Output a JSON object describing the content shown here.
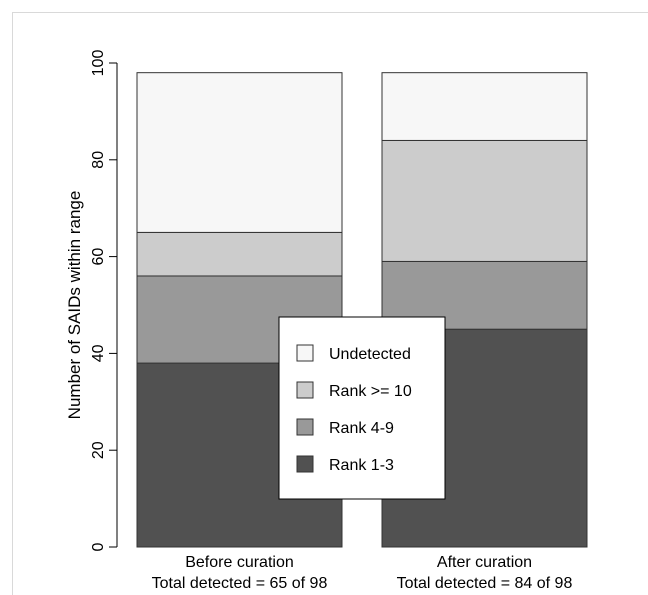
{
  "chart_data": {
    "type": "bar",
    "stacked": true,
    "categories": [
      "Before curation",
      "After curation"
    ],
    "category_sublabels": [
      "Total detected = 65 of 98",
      "Total detected = 84 of 98"
    ],
    "ylabel": "Number of SAIDs within range",
    "ylim": [
      0,
      100
    ],
    "yticks": [
      0,
      20,
      40,
      60,
      80,
      100
    ],
    "series": [
      {
        "name": "Rank 1-3",
        "color": "#515151",
        "values": [
          38,
          45
        ]
      },
      {
        "name": "Rank 4-9",
        "color": "#999999",
        "values": [
          18,
          14
        ]
      },
      {
        "name": "Rank >= 10",
        "color": "#cccccc",
        "values": [
          9,
          25
        ]
      },
      {
        "name": "Undetected",
        "color": "#f7f7f7",
        "values": [
          33,
          14
        ]
      }
    ],
    "legend": {
      "position": "center",
      "order": [
        "Undetected",
        "Rank >= 10",
        "Rank 4-9",
        "Rank 1-3"
      ]
    },
    "grid": false
  }
}
